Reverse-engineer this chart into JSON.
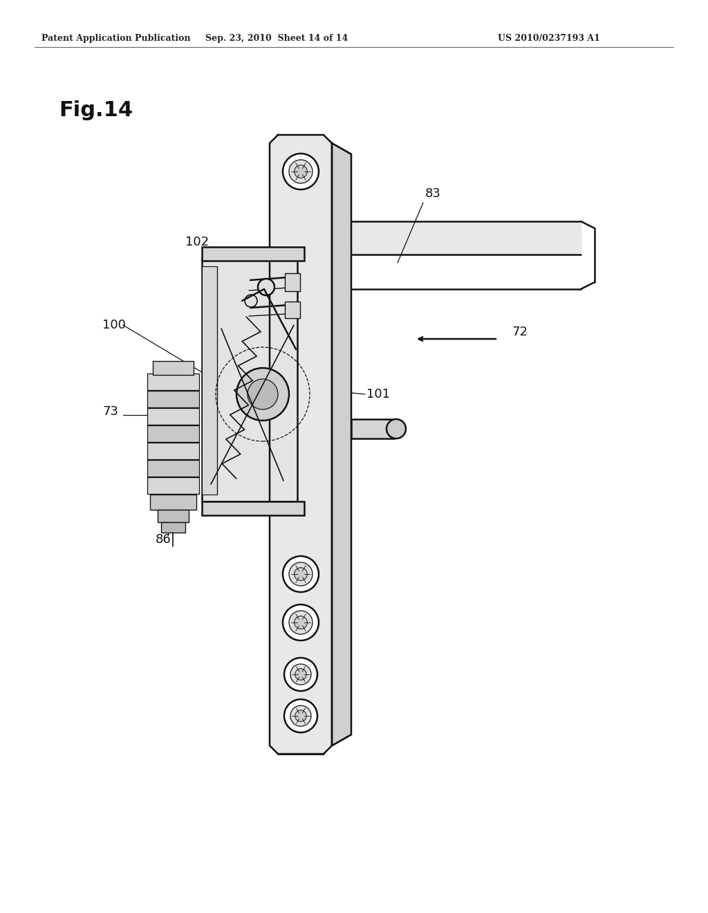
{
  "background_color": "#ffffff",
  "title_text": "Fig.14",
  "header_left": "Patent Application Publication",
  "header_mid": "Sep. 23, 2010  Sheet 14 of 14",
  "header_right": "US 2010/0237193 A1",
  "line_color": "#111111",
  "label_fontsize": 13,
  "title_fontsize": 22,
  "header_fontsize": 9,
  "rail_fc": "#e8e8e8",
  "rail_side_fc": "#d0d0d0",
  "mech_fc": "#e4e4e4",
  "gray_light": "#dddddd",
  "gray_mid": "#cccccc"
}
